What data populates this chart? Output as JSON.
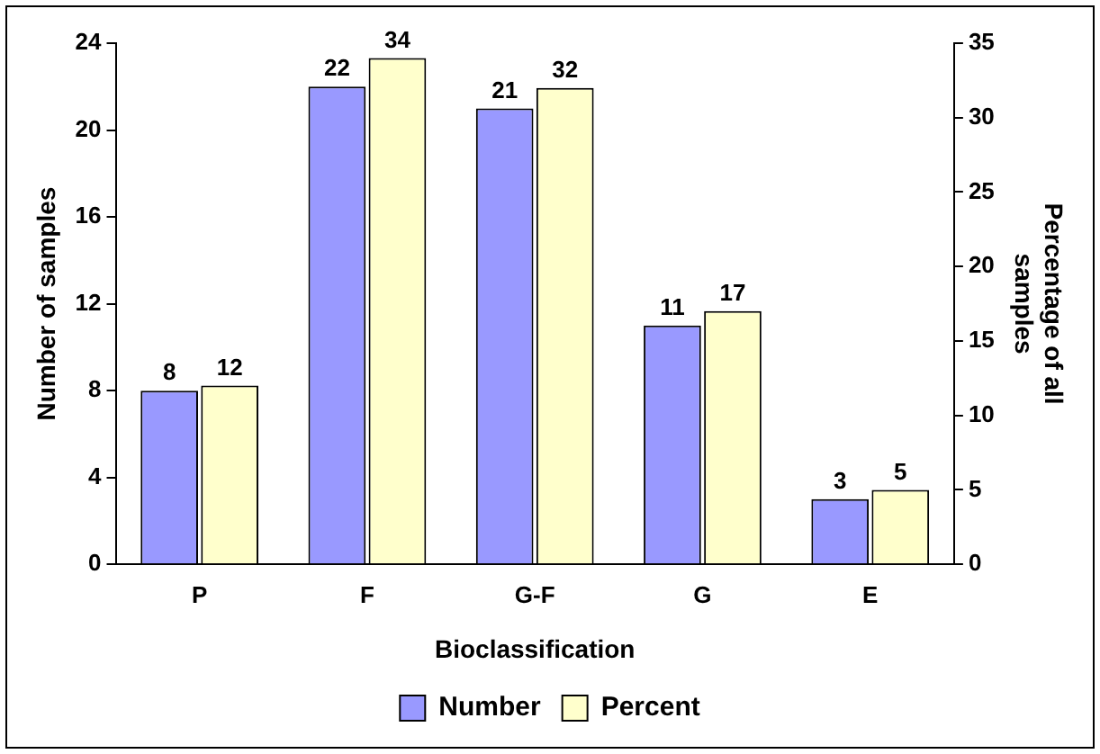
{
  "chart_data": {
    "type": "bar",
    "xlabel": "Bioclassification",
    "ylabel": "Number of samples",
    "y2label": "Percentage of all samples",
    "categories": [
      "P",
      "F",
      "G-F",
      "G",
      "E"
    ],
    "series": [
      {
        "name": "Number",
        "color": "#9999ff",
        "values": [
          8,
          22,
          21,
          11,
          3
        ]
      },
      {
        "name": "Percent",
        "color": "#ffffcc",
        "values": [
          12,
          34,
          32,
          17,
          5
        ],
        "axis": "y2"
      }
    ],
    "ylim": [
      0,
      24
    ],
    "yticks": [
      0,
      4,
      8,
      12,
      16,
      20,
      24
    ],
    "y2lim": [
      0,
      35
    ],
    "y2ticks": [
      0,
      5,
      10,
      15,
      20,
      25,
      30,
      35
    ],
    "data_labels": true,
    "legend": "bottom",
    "grid": false
  }
}
